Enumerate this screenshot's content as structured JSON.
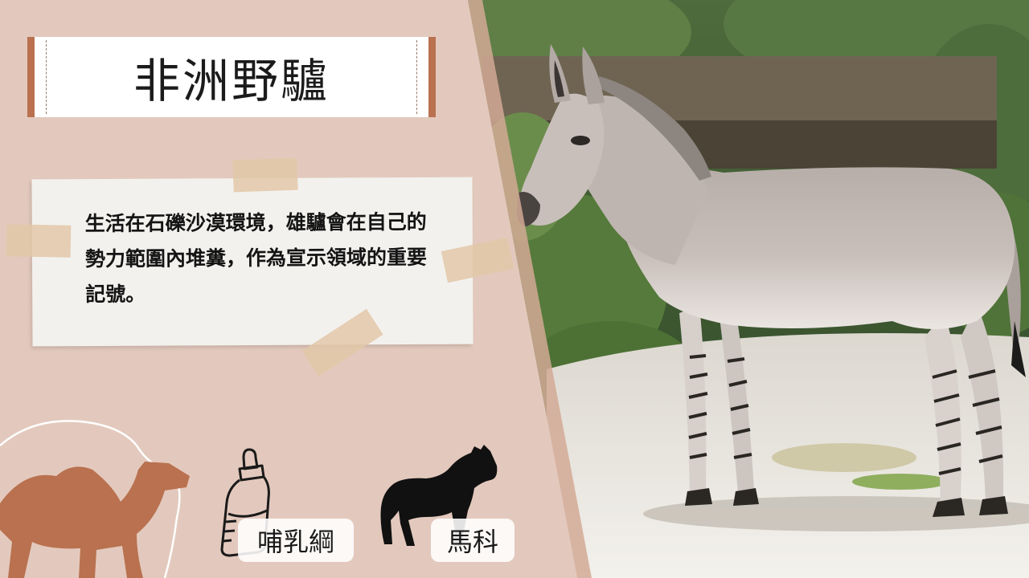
{
  "title": "非洲野驢",
  "description": "生活在石礫沙漠環境，雄驢會在自己的勢力範圍內堆糞，作為宣示領域的重要記號。",
  "classification": {
    "class_label": "哺乳綱",
    "family_label": "馬科"
  },
  "colors": {
    "panel_background": "#e3c9bd",
    "banner_accent": "#b9714f",
    "camel": "#b9714f"
  },
  "icons": {
    "class_icon": "baby-bottle-icon",
    "family_icon": "horse-silhouette-icon",
    "decor_icon": "camel-silhouette-icon"
  }
}
